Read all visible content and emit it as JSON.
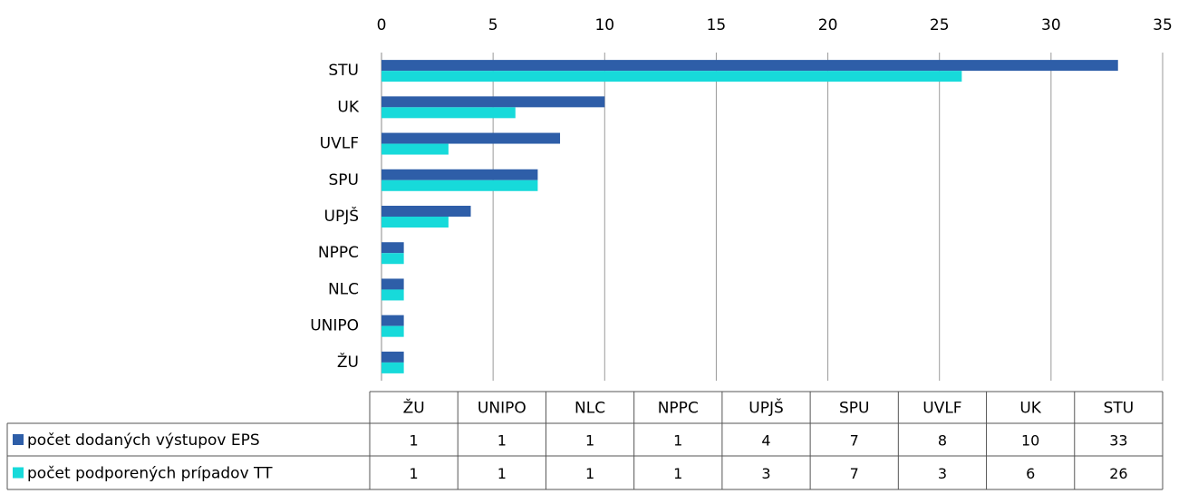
{
  "chart_data": {
    "type": "bar",
    "orientation": "horizontal",
    "categories": [
      "ŽU",
      "UNIPO",
      "NLC",
      "NPPC",
      "UPJŠ",
      "SPU",
      "UVLF",
      "UK",
      "STU"
    ],
    "series": [
      {
        "name": "počet dodaných výstupov EPS",
        "color": "#2e5ea8",
        "values": [
          1,
          1,
          1,
          1,
          4,
          7,
          8,
          10,
          33
        ]
      },
      {
        "name": "počet podporených prípadov TT",
        "color": "#17dada",
        "values": [
          1,
          1,
          1,
          1,
          3,
          7,
          3,
          6,
          26
        ]
      }
    ],
    "xlim": [
      0,
      35
    ],
    "xticks": [
      0,
      5,
      10,
      15,
      20,
      25,
      30,
      35
    ],
    "grid": true,
    "data_table": true
  }
}
